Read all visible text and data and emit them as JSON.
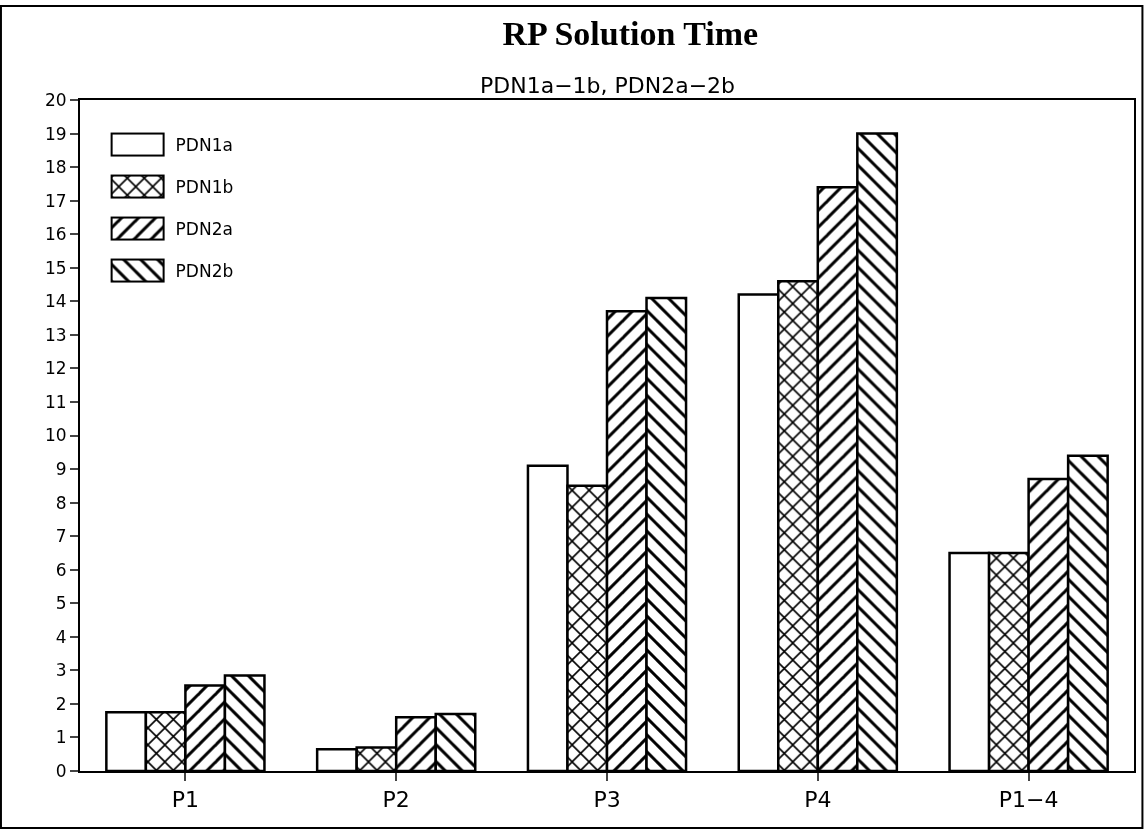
{
  "chart_data": {
    "type": "bar",
    "title": "RP Solution Time",
    "subtitle": "PDN1a−1b, PDN2a−2b",
    "categories": [
      "P1",
      "P2",
      "P3",
      "P4",
      "P1−4"
    ],
    "series": [
      {
        "name": "PDN1a",
        "color": "#ffffff",
        "values": [
          1.75,
          0.65,
          9.1,
          14.2,
          6.5
        ]
      },
      {
        "name": "PDN1b",
        "color": "#000000",
        "values": [
          1.75,
          0.7,
          8.5,
          14.6,
          6.5
        ]
      },
      {
        "name": "PDN2a",
        "color": "#000000",
        "values": [
          2.55,
          1.6,
          13.7,
          17.4,
          8.7
        ]
      },
      {
        "name": "PDN2b",
        "color": "#000000",
        "values": [
          2.85,
          1.7,
          14.1,
          19.0,
          9.4
        ]
      }
    ],
    "ylim": [
      0,
      20
    ],
    "yticks": [
      0,
      1,
      2,
      3,
      4,
      5,
      6,
      7,
      8,
      9,
      10,
      11,
      12,
      13,
      14,
      15,
      16,
      17,
      18,
      19,
      20
    ],
    "grid": false,
    "legend": "top left"
  }
}
